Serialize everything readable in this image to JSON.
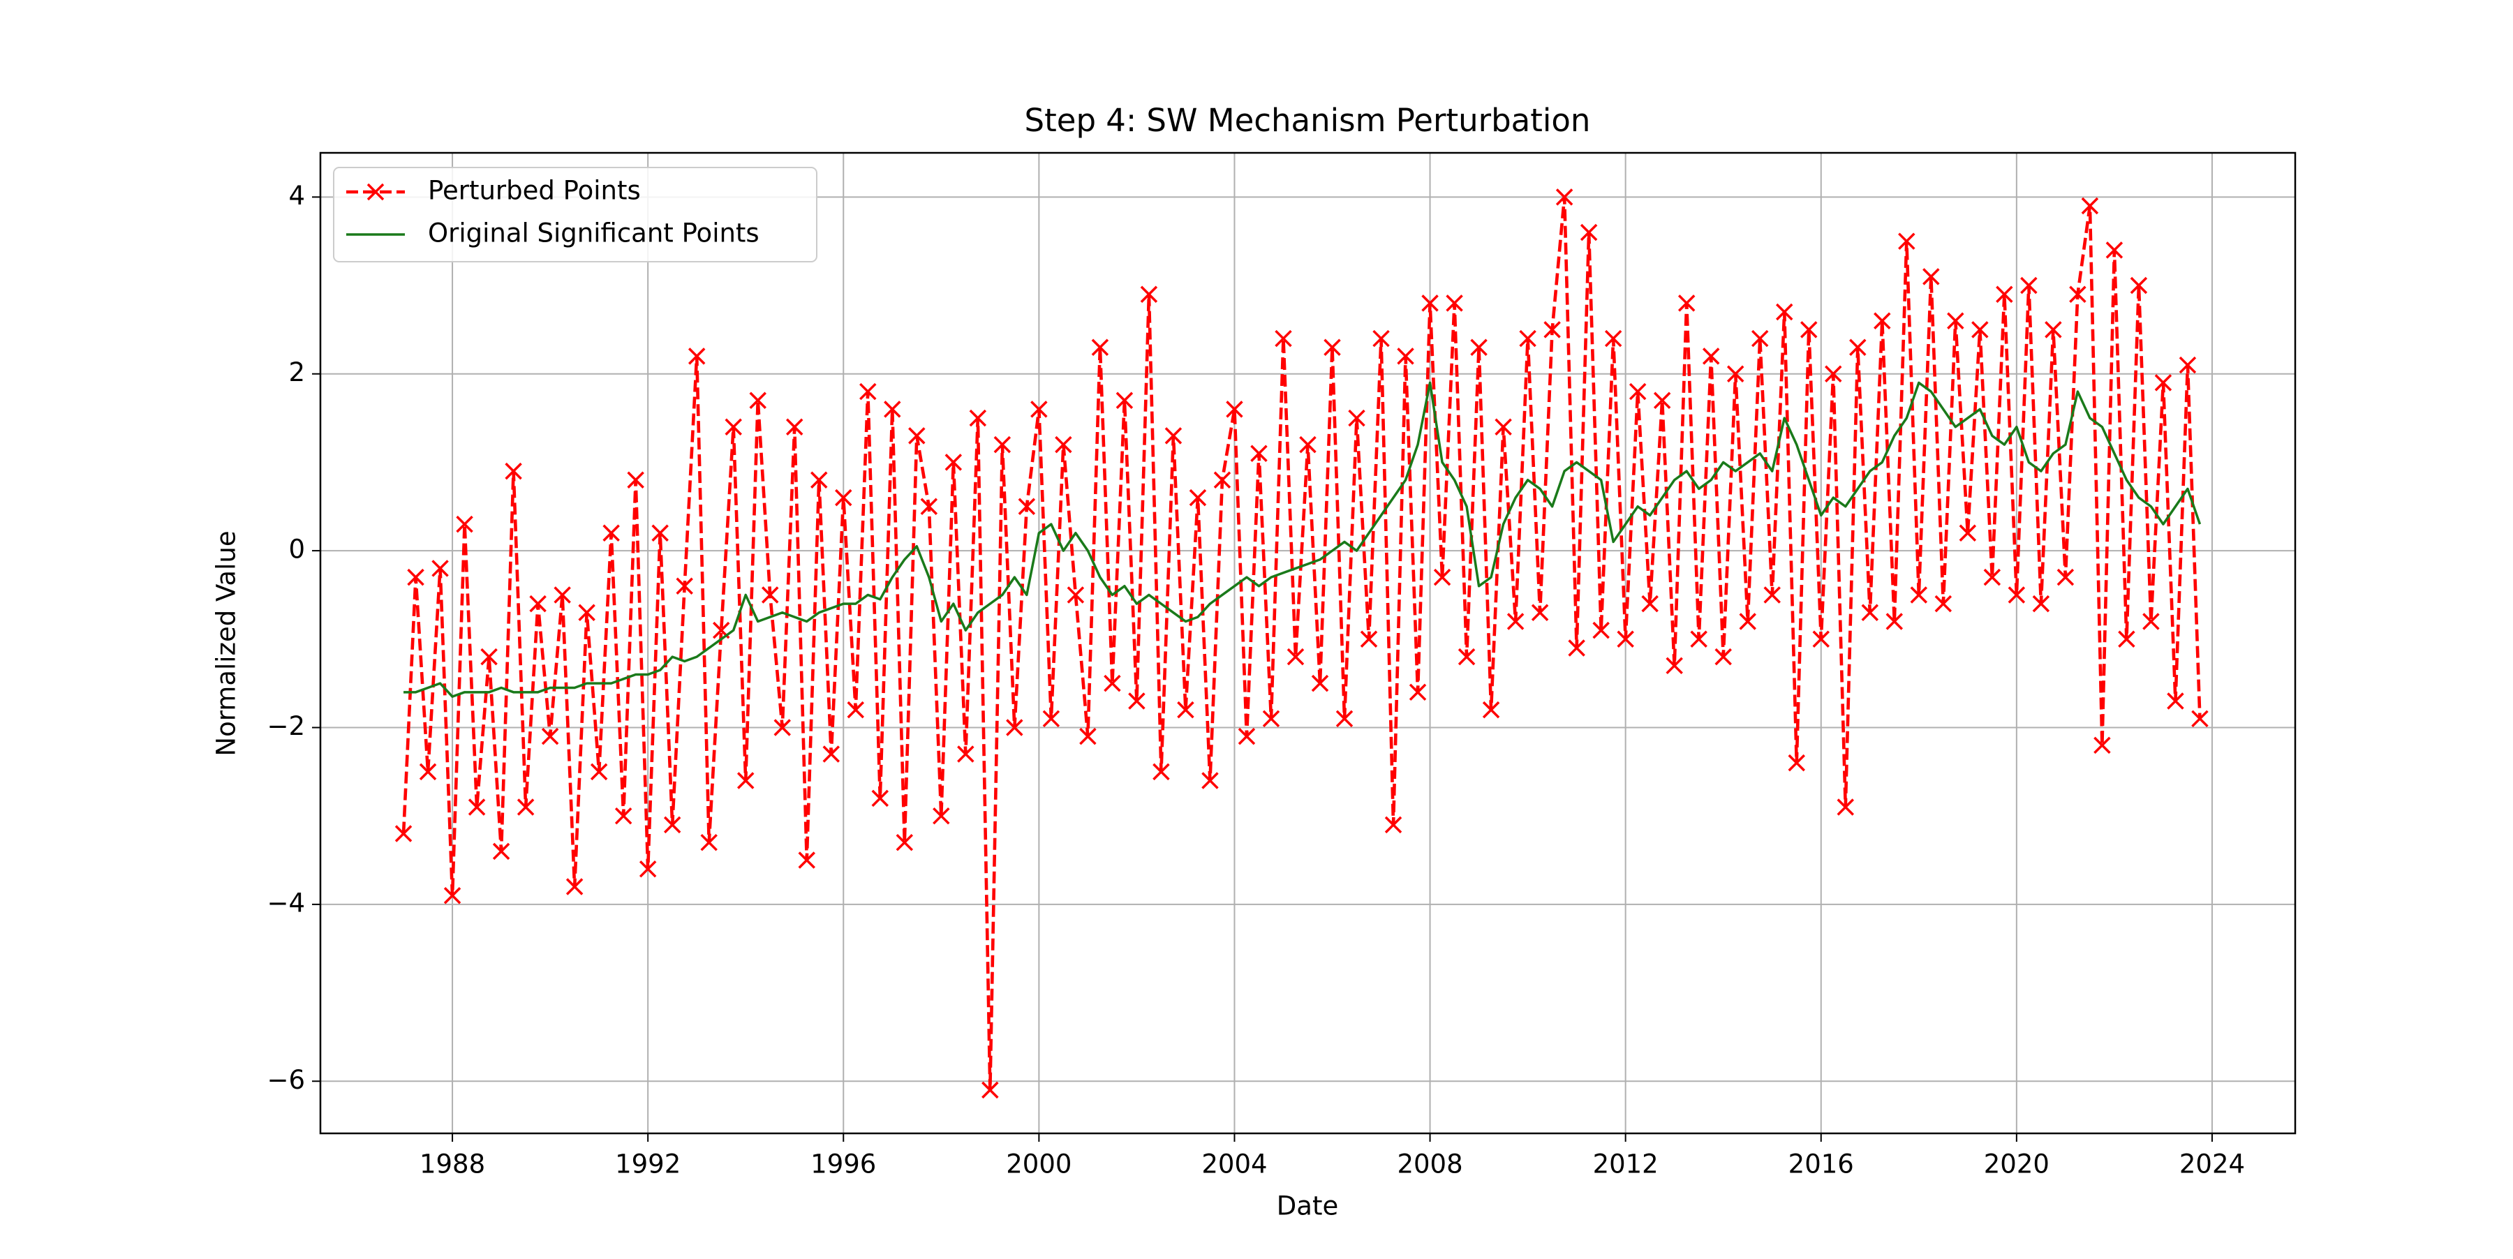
{
  "chart_data": {
    "type": "line",
    "title": "Step 4: SW Mechanism Perturbation",
    "xlabel": "Date",
    "ylabel": "Normalized Value",
    "x": [
      1987,
      1987.25,
      1987.5,
      1987.75,
      1988,
      1988.25,
      1988.5,
      1988.75,
      1989,
      1989.25,
      1989.5,
      1989.75,
      1990,
      1990.25,
      1990.5,
      1990.75,
      1991,
      1991.25,
      1991.5,
      1991.75,
      1992,
      1992.25,
      1992.5,
      1992.75,
      1993,
      1993.25,
      1993.5,
      1993.75,
      1994,
      1994.25,
      1994.5,
      1994.75,
      1995,
      1995.25,
      1995.5,
      1995.75,
      1996,
      1996.25,
      1996.5,
      1996.75,
      1997,
      1997.25,
      1997.5,
      1997.75,
      1998,
      1998.25,
      1998.5,
      1998.75,
      1999,
      1999.25,
      1999.5,
      1999.75,
      2000,
      2000.25,
      2000.5,
      2000.75,
      2001,
      2001.25,
      2001.5,
      2001.75,
      2002,
      2002.25,
      2002.5,
      2002.75,
      2003,
      2003.25,
      2003.5,
      2003.75,
      2004,
      2004.25,
      2004.5,
      2004.75,
      2005,
      2005.25,
      2005.5,
      2005.75,
      2006,
      2006.25,
      2006.5,
      2006.75,
      2007,
      2007.25,
      2007.5,
      2007.75,
      2008,
      2008.25,
      2008.5,
      2008.75,
      2009,
      2009.25,
      2009.5,
      2009.75,
      2010,
      2010.25,
      2010.5,
      2010.75,
      2011,
      2011.25,
      2011.5,
      2011.75,
      2012,
      2012.25,
      2012.5,
      2012.75,
      2013,
      2013.25,
      2013.5,
      2013.75,
      2014,
      2014.25,
      2014.5,
      2014.75,
      2015,
      2015.25,
      2015.5,
      2015.75,
      2016,
      2016.25,
      2016.5,
      2016.75,
      2017,
      2017.25,
      2017.5,
      2017.75,
      2018,
      2018.25,
      2018.5,
      2018.75,
      2019,
      2019.25,
      2019.5,
      2019.75,
      2020,
      2020.25,
      2020.5,
      2020.75,
      2021,
      2021.25,
      2021.5,
      2021.75,
      2022,
      2022.25,
      2022.5,
      2022.75,
      2023,
      2023.25,
      2023.5,
      2023.75
    ],
    "series": [
      {
        "name": "Perturbed Points",
        "color": "#ff0000",
        "linestyle": "dashed",
        "marker": "x",
        "values": [
          -3.2,
          -0.3,
          -2.5,
          -0.2,
          -3.9,
          0.3,
          -2.9,
          -1.2,
          -3.4,
          0.9,
          -2.9,
          -0.6,
          -2.1,
          -0.5,
          -3.8,
          -0.7,
          -2.5,
          0.2,
          -3.0,
          0.8,
          -3.6,
          0.2,
          -3.1,
          -0.4,
          2.2,
          -3.3,
          -0.9,
          1.4,
          -2.6,
          1.7,
          -0.5,
          -2.0,
          1.4,
          -3.5,
          0.8,
          -2.3,
          0.6,
          -1.8,
          1.8,
          -2.8,
          1.6,
          -3.3,
          1.3,
          0.5,
          -3.0,
          1.0,
          -2.3,
          1.5,
          -6.1,
          1.2,
          -2.0,
          0.5,
          1.6,
          -1.9,
          1.2,
          -0.5,
          -2.1,
          2.3,
          -1.5,
          1.7,
          -1.7,
          2.9,
          -2.5,
          1.3,
          -1.8,
          0.6,
          -2.6,
          0.8,
          1.6,
          -2.1,
          1.1,
          -1.9,
          2.4,
          -1.2,
          1.2,
          -1.5,
          2.3,
          -1.9,
          1.5,
          -1.0,
          2.4,
          -3.1,
          2.2,
          -1.6,
          2.8,
          -0.3,
          2.8,
          -1.2,
          2.3,
          -1.8,
          1.4,
          -0.8,
          2.4,
          -0.7,
          2.5,
          4.0,
          -1.1,
          3.6,
          -0.9,
          2.4,
          -1.0,
          1.8,
          -0.6,
          1.7,
          -1.3,
          2.8,
          -1.0,
          2.2,
          -1.2,
          2.0,
          -0.8,
          2.4,
          -0.5,
          2.7,
          -2.4,
          2.5,
          -1.0,
          2.0,
          -2.9,
          2.3,
          -0.7,
          2.6,
          -0.8,
          3.5,
          -0.5,
          3.1,
          -0.6,
          2.6,
          0.2,
          2.5,
          -0.3,
          2.9,
          -0.5,
          3.0,
          -0.6,
          2.5,
          -0.3,
          2.9,
          3.9,
          -2.2,
          3.4,
          -1.0,
          3.0,
          -0.8,
          1.9,
          -1.7,
          2.1,
          -1.9
        ]
      },
      {
        "name": "Original Significant Points",
        "color": "#1a7a1a",
        "linestyle": "solid",
        "values": [
          -1.6,
          -1.6,
          -1.55,
          -1.5,
          -1.65,
          -1.6,
          -1.6,
          -1.6,
          -1.55,
          -1.6,
          -1.6,
          -1.6,
          -1.55,
          -1.55,
          -1.55,
          -1.5,
          -1.5,
          -1.5,
          -1.45,
          -1.4,
          -1.4,
          -1.35,
          -1.2,
          -1.25,
          -1.2,
          -1.1,
          -1.0,
          -0.9,
          -0.5,
          -0.8,
          -0.75,
          -0.7,
          -0.75,
          -0.8,
          -0.7,
          -0.65,
          -0.6,
          -0.6,
          -0.5,
          -0.55,
          -0.3,
          -0.1,
          0.05,
          -0.3,
          -0.8,
          -0.6,
          -0.9,
          -0.7,
          -0.6,
          -0.5,
          -0.3,
          -0.5,
          0.2,
          0.3,
          0.0,
          0.2,
          0.0,
          -0.3,
          -0.5,
          -0.4,
          -0.6,
          -0.5,
          -0.6,
          -0.7,
          -0.8,
          -0.75,
          -0.6,
          -0.5,
          -0.4,
          -0.3,
          -0.4,
          -0.3,
          -0.25,
          -0.2,
          -0.15,
          -0.1,
          0.0,
          0.1,
          0.0,
          0.2,
          0.4,
          0.6,
          0.8,
          1.2,
          1.9,
          1.0,
          0.8,
          0.5,
          -0.4,
          -0.3,
          0.3,
          0.6,
          0.8,
          0.7,
          0.5,
          0.9,
          1.0,
          0.9,
          0.8,
          0.1,
          0.3,
          0.5,
          0.4,
          0.6,
          0.8,
          0.9,
          0.7,
          0.8,
          1.0,
          0.9,
          1.0,
          1.1,
          0.9,
          1.5,
          1.2,
          0.8,
          0.4,
          0.6,
          0.5,
          0.7,
          0.9,
          1.0,
          1.3,
          1.5,
          1.9,
          1.8,
          1.6,
          1.4,
          1.5,
          1.6,
          1.3,
          1.2,
          1.4,
          1.0,
          0.9,
          1.1,
          1.2,
          1.8,
          1.5,
          1.4,
          1.1,
          0.8,
          0.6,
          0.5,
          0.3,
          0.5,
          0.7,
          0.3
        ]
      }
    ],
    "xlim": [
      1985.3,
      2025.7
    ],
    "xticks": [
      1988,
      1992,
      1996,
      2000,
      2004,
      2008,
      2012,
      2016,
      2020,
      2024
    ],
    "ylim": [
      -6.59,
      4.5
    ],
    "yticks": [
      {
        "value": -6,
        "label": "−6"
      },
      {
        "value": -4,
        "label": "−4"
      },
      {
        "value": -2,
        "label": "−2"
      },
      0,
      2,
      4
    ],
    "grid": true,
    "legend": "upper left"
  }
}
